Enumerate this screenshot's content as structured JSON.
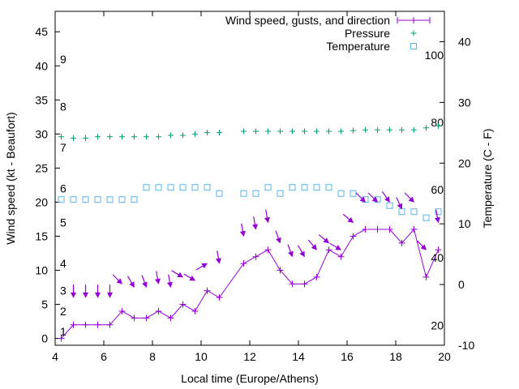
{
  "chart_data": {
    "type": "line",
    "title": "",
    "xlabel": "Local time (Europe/Athens)",
    "ylabel": "Wind speed (kt - Beaufort)",
    "y2label": "Temperature (C - F)",
    "xlim": [
      4,
      20
    ],
    "ylim": [
      -1,
      48
    ],
    "y2lim": [
      -10,
      45
    ],
    "xticks": [
      "4",
      "6",
      "8",
      "10",
      "12",
      "14",
      "16",
      "18",
      "20"
    ],
    "yticks": [
      "0",
      "5",
      "10",
      "15",
      "20",
      "25",
      "30",
      "35",
      "40",
      "45"
    ],
    "y2ticks": [
      "-10",
      "0",
      "10",
      "20",
      "30",
      "40"
    ],
    "grid": false,
    "legend_position": "top-right",
    "beaufort_labels": [
      {
        "label": "1",
        "y": 1
      },
      {
        "label": "2",
        "y": 4
      },
      {
        "label": "3",
        "y": 7
      },
      {
        "label": "4",
        "y": 11
      },
      {
        "label": "5",
        "y": 17
      },
      {
        "label": "6",
        "y": 22
      },
      {
        "label": "7",
        "y": 28
      },
      {
        "label": "8",
        "y": 34
      },
      {
        "label": "9",
        "y": 41
      }
    ],
    "fahrenheit_labels": [
      {
        "label": "20",
        "y": -6.7
      },
      {
        "label": "40",
        "y": 4.4
      },
      {
        "label": "60",
        "y": 15.6
      },
      {
        "label": "80",
        "y": 26.7
      },
      {
        "label": "100",
        "y": 37.8
      }
    ],
    "series": [
      {
        "name": "Wind speed, gusts, and direction",
        "color": "#9400d3",
        "x": [
          4.25,
          4.75,
          5.25,
          5.75,
          6.25,
          6.75,
          7.25,
          7.75,
          8.25,
          8.75,
          9.25,
          9.75,
          10.25,
          10.75,
          11.75,
          12.25,
          12.75,
          13.25,
          13.75,
          14.25,
          14.75,
          15.25,
          15.75,
          16.25,
          16.75,
          17.25,
          17.75,
          18.25,
          18.75,
          19.25,
          19.75
        ],
        "values": [
          0,
          2,
          2,
          2,
          2,
          4,
          3,
          3,
          4,
          3,
          5,
          4,
          7,
          6,
          11,
          12,
          13,
          10,
          8,
          8,
          9,
          13,
          12,
          15,
          16,
          16,
          16,
          14,
          16,
          9,
          13
        ]
      },
      {
        "name": "Pressure",
        "color": "#009e73",
        "x": [
          4.25,
          4.75,
          5.25,
          5.75,
          6.25,
          6.75,
          7.25,
          7.75,
          8.25,
          8.75,
          9.25,
          9.75,
          10.25,
          10.75,
          11.75,
          12.25,
          12.75,
          13.25,
          13.75,
          14.25,
          14.75,
          15.25,
          15.75,
          16.25,
          16.75,
          17.25,
          17.75,
          18.25,
          18.75,
          19.25,
          19.75
        ],
        "values": [
          29.6,
          29.4,
          29.4,
          29.6,
          29.6,
          29.6,
          29.6,
          29.6,
          29.6,
          29.8,
          29.8,
          30,
          30.2,
          30.2,
          30.4,
          30.4,
          30.4,
          30.4,
          30.4,
          30.4,
          30.4,
          30.4,
          30.4,
          30.5,
          30.6,
          30.6,
          30.6,
          30.6,
          30.6,
          30.9,
          31.2
        ]
      },
      {
        "name": "Temperature",
        "color": "#56b4e9",
        "axis": "right",
        "x": [
          4.25,
          4.75,
          5.25,
          5.75,
          6.25,
          6.75,
          7.25,
          7.75,
          8.25,
          8.75,
          9.25,
          9.75,
          10.25,
          10.75,
          11.75,
          12.25,
          12.75,
          13.25,
          13.75,
          14.25,
          14.75,
          15.25,
          15.75,
          16.25,
          16.75,
          17.25,
          17.75,
          18.25,
          18.75,
          19.25,
          19.75
        ],
        "values": [
          14,
          14,
          14,
          14,
          14,
          14,
          14,
          16,
          16,
          16,
          16,
          16,
          16,
          15,
          15,
          15,
          16,
          15,
          16,
          16,
          16,
          16,
          15,
          15,
          14,
          14,
          13,
          12,
          12,
          11,
          12
        ]
      }
    ],
    "direction_arrows": {
      "color": "#9400d3",
      "x": [
        4.75,
        5.25,
        5.75,
        6.25,
        6.75,
        7.25,
        7.75,
        8.25,
        8.75,
        9.25,
        9.75,
        10.25,
        10.75,
        11.75,
        12.25,
        12.75,
        13.25,
        13.75,
        14.25,
        14.75,
        15.25,
        15.75,
        16.25,
        16.75,
        17.25,
        17.75,
        18.25,
        18.75,
        19.25,
        19.75
      ],
      "y": [
        6,
        6,
        6,
        6,
        8,
        7.5,
        7.5,
        8,
        7.5,
        9,
        8.5,
        11,
        11,
        15,
        16,
        17,
        14,
        12,
        12,
        13,
        14,
        13,
        17,
        20,
        20,
        20,
        19,
        20,
        13,
        17
      ],
      "direction_deg": [
        180,
        180,
        180,
        180,
        135,
        150,
        160,
        170,
        170,
        120,
        120,
        60,
        170,
        170,
        170,
        170,
        160,
        160,
        150,
        140,
        130,
        120,
        130,
        135,
        135,
        145,
        155,
        135,
        135,
        170
      ]
    }
  }
}
